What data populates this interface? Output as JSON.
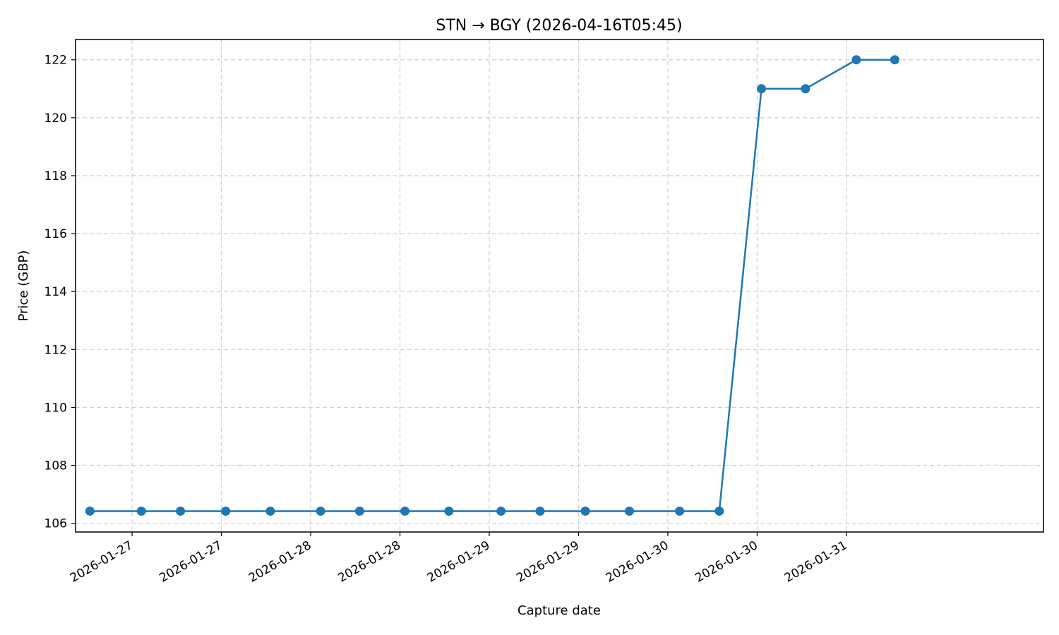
{
  "chart_data": {
    "type": "line",
    "title": "STN → BGY (2026-04-16T05:45)",
    "xlabel": "Capture date",
    "ylabel": "Price (GBP)",
    "x_axis_kind": "datetime",
    "xlim": [
      "2026-01-26T16:24",
      "2026-02-01T02:29"
    ],
    "ylim": [
      105.7,
      122.7
    ],
    "x_ticks": [
      {
        "value": "2026-01-27T00:00",
        "label": "2026-01-27"
      },
      {
        "value": "2026-01-27T12:00",
        "label": "2026-01-27"
      },
      {
        "value": "2026-01-28T00:00",
        "label": "2026-01-28"
      },
      {
        "value": "2026-01-28T12:00",
        "label": "2026-01-28"
      },
      {
        "value": "2026-01-29T00:00",
        "label": "2026-01-29"
      },
      {
        "value": "2026-01-29T12:00",
        "label": "2026-01-29"
      },
      {
        "value": "2026-01-30T00:00",
        "label": "2026-01-30"
      },
      {
        "value": "2026-01-30T12:00",
        "label": "2026-01-30"
      },
      {
        "value": "2026-01-31T00:00",
        "label": "2026-01-31"
      }
    ],
    "y_ticks": [
      106,
      108,
      110,
      112,
      114,
      116,
      118,
      120,
      122
    ],
    "grid": true,
    "legend": "none",
    "color": "#1f77b4",
    "marker": "circle",
    "series": [
      {
        "x": [
          "2026-01-26T18:20",
          "2026-01-27T01:15",
          "2026-01-27T06:30",
          "2026-01-27T12:35",
          "2026-01-27T18:35",
          "2026-01-28T01:20",
          "2026-01-28T06:35",
          "2026-01-28T12:40",
          "2026-01-28T18:35",
          "2026-01-29T01:35",
          "2026-01-29T06:50",
          "2026-01-29T12:55",
          "2026-01-29T18:50",
          "2026-01-30T01:35",
          "2026-01-30T06:55",
          "2026-01-30T12:35",
          "2026-01-30T18:30",
          "2026-01-31T01:20",
          "2026-01-31T06:30"
        ],
        "y": [
          106.42,
          106.42,
          106.42,
          106.42,
          106.42,
          106.42,
          106.42,
          106.42,
          106.42,
          106.42,
          106.42,
          106.42,
          106.42,
          106.42,
          106.42,
          121.0,
          121.0,
          122.0,
          122.0
        ]
      }
    ]
  }
}
